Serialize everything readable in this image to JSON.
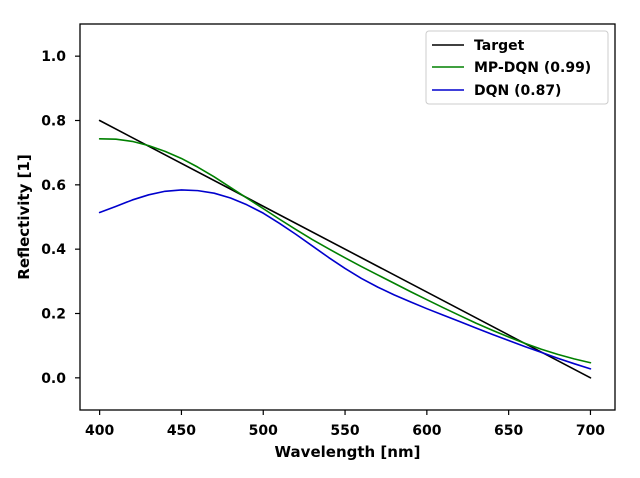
{
  "chart_data": {
    "type": "line",
    "title": "",
    "xlabel": "Wavelength [nm]",
    "ylabel": "Reflectivity [1]",
    "xlim": [
      388,
      715
    ],
    "ylim": [
      -0.1,
      1.1
    ],
    "xticks": [
      400,
      450,
      500,
      550,
      600,
      650,
      700
    ],
    "xtick_labels": [
      "400",
      "450",
      "500",
      "550",
      "600",
      "650",
      "700"
    ],
    "yticks": [
      0.0,
      0.2,
      0.4,
      0.6,
      0.8,
      1.0
    ],
    "ytick_labels": [
      "0.0",
      "0.2",
      "0.4",
      "0.6",
      "0.8",
      "1.0"
    ],
    "grid": false,
    "legend_position": "top-right",
    "series": [
      {
        "name": "Target",
        "color": "#000000",
        "x": [
          400,
          700
        ],
        "y": [
          0.8,
          0.0
        ]
      },
      {
        "name": "MP-DQN (0.99)",
        "color": "#008000",
        "x": [
          400,
          410,
          420,
          430,
          440,
          450,
          460,
          470,
          480,
          490,
          500,
          510,
          520,
          530,
          540,
          550,
          560,
          570,
          580,
          590,
          600,
          610,
          620,
          630,
          640,
          650,
          660,
          670,
          680,
          690,
          700
        ],
        "y": [
          0.743,
          0.742,
          0.735,
          0.722,
          0.704,
          0.682,
          0.655,
          0.625,
          0.592,
          0.559,
          0.526,
          0.493,
          0.461,
          0.43,
          0.401,
          0.373,
          0.346,
          0.32,
          0.294,
          0.268,
          0.243,
          0.218,
          0.194,
          0.17,
          0.148,
          0.127,
          0.107,
          0.089,
          0.073,
          0.059,
          0.047
        ]
      },
      {
        "name": "DQN (0.87)",
        "color": "#0000cd",
        "x": [
          400,
          410,
          420,
          430,
          440,
          450,
          460,
          470,
          480,
          490,
          500,
          510,
          520,
          530,
          540,
          550,
          560,
          570,
          580,
          590,
          600,
          610,
          620,
          630,
          640,
          650,
          660,
          670,
          680,
          690,
          700
        ],
        "y": [
          0.514,
          0.533,
          0.553,
          0.569,
          0.58,
          0.584,
          0.582,
          0.574,
          0.559,
          0.538,
          0.512,
          0.48,
          0.446,
          0.41,
          0.374,
          0.34,
          0.309,
          0.282,
          0.258,
          0.236,
          0.215,
          0.195,
          0.175,
          0.155,
          0.135,
          0.116,
          0.097,
          0.079,
          0.061,
          0.044,
          0.028
        ]
      }
    ]
  }
}
